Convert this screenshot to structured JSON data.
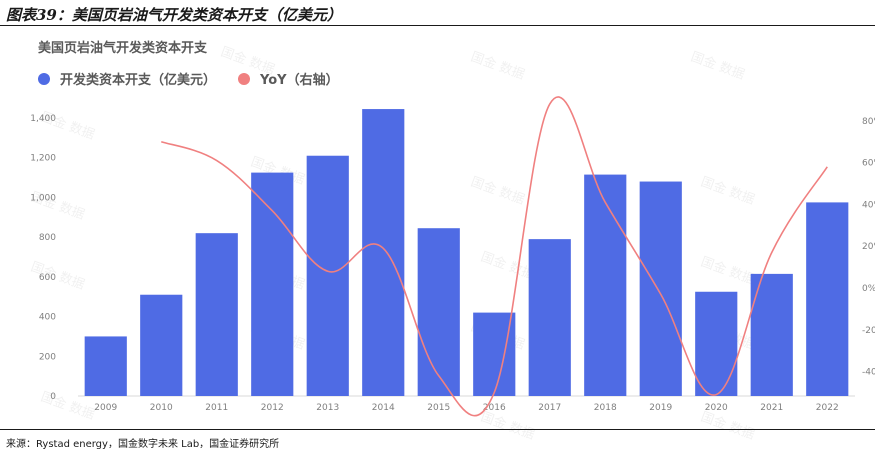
{
  "figure_caption": "图表39：美国页岩油气开发类资本开支（亿美元）",
  "source": "来源：Rystad energy，国金数字未来 Lab，国金证券研究所",
  "watermark": "国金 数据",
  "chart_data": {
    "type": "bar",
    "title": "美国页岩油气开发类资本开支",
    "categories": [
      "2009",
      "2010",
      "2011",
      "2012",
      "2013",
      "2014",
      "2015",
      "2016",
      "2017",
      "2018",
      "2019",
      "2020",
      "2021",
      "2022"
    ],
    "series": [
      {
        "name": "开发类资本开支（亿美元）",
        "type": "bar",
        "axis": "left",
        "color": "#4f6be4",
        "values": [
          300,
          510,
          820,
          1125,
          1210,
          1445,
          845,
          420,
          790,
          1115,
          1080,
          525,
          615,
          975
        ]
      },
      {
        "name": "YoY（右轴）",
        "type": "line",
        "axis": "right",
        "color": "#f08080",
        "values": [
          null,
          70,
          61,
          37,
          8,
          19,
          -42,
          -50,
          88,
          41,
          -3,
          -51,
          17,
          58
        ]
      }
    ],
    "y_left": {
      "min": 0,
      "max": 1400,
      "ticks": [
        "0",
        "200",
        "400",
        "600",
        "800",
        "1,000",
        "1,200",
        "1,400"
      ]
    },
    "y_right": {
      "min": -40,
      "max": 80,
      "ticks": [
        "-40",
        "-20",
        "0%",
        "20%",
        "40%",
        "60%",
        "80%"
      ]
    },
    "grid": false,
    "legend_position": "top-left"
  }
}
